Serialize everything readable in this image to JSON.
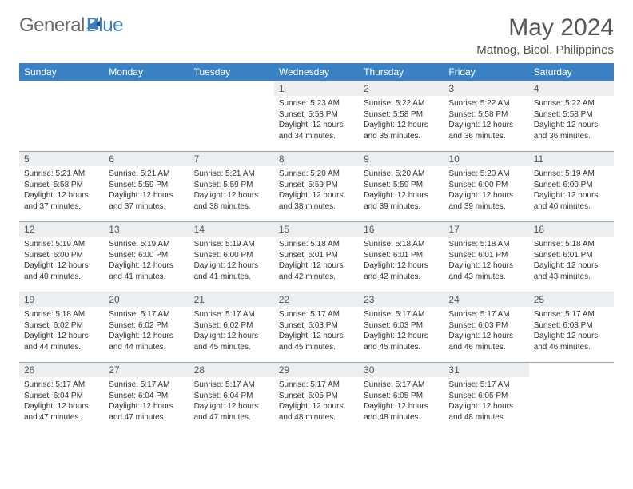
{
  "brand": {
    "part1": "General",
    "part2": "Blue"
  },
  "title": {
    "month": "May 2024",
    "location": "Matnog, Bicol, Philippines"
  },
  "colors": {
    "header_bg": "#3b82c4",
    "header_text": "#ffffff",
    "daynum_bg": "#eceff1",
    "border": "#9aa7b0",
    "brand_gray": "#666666",
    "brand_blue": "#3b82c4"
  },
  "weekdays": [
    "Sunday",
    "Monday",
    "Tuesday",
    "Wednesday",
    "Thursday",
    "Friday",
    "Saturday"
  ],
  "weeks": [
    [
      null,
      null,
      null,
      {
        "n": "1",
        "sr": "5:23 AM",
        "ss": "5:58 PM",
        "dl": "12 hours and 34 minutes."
      },
      {
        "n": "2",
        "sr": "5:22 AM",
        "ss": "5:58 PM",
        "dl": "12 hours and 35 minutes."
      },
      {
        "n": "3",
        "sr": "5:22 AM",
        "ss": "5:58 PM",
        "dl": "12 hours and 36 minutes."
      },
      {
        "n": "4",
        "sr": "5:22 AM",
        "ss": "5:58 PM",
        "dl": "12 hours and 36 minutes."
      }
    ],
    [
      {
        "n": "5",
        "sr": "5:21 AM",
        "ss": "5:58 PM",
        "dl": "12 hours and 37 minutes."
      },
      {
        "n": "6",
        "sr": "5:21 AM",
        "ss": "5:59 PM",
        "dl": "12 hours and 37 minutes."
      },
      {
        "n": "7",
        "sr": "5:21 AM",
        "ss": "5:59 PM",
        "dl": "12 hours and 38 minutes."
      },
      {
        "n": "8",
        "sr": "5:20 AM",
        "ss": "5:59 PM",
        "dl": "12 hours and 38 minutes."
      },
      {
        "n": "9",
        "sr": "5:20 AM",
        "ss": "5:59 PM",
        "dl": "12 hours and 39 minutes."
      },
      {
        "n": "10",
        "sr": "5:20 AM",
        "ss": "6:00 PM",
        "dl": "12 hours and 39 minutes."
      },
      {
        "n": "11",
        "sr": "5:19 AM",
        "ss": "6:00 PM",
        "dl": "12 hours and 40 minutes."
      }
    ],
    [
      {
        "n": "12",
        "sr": "5:19 AM",
        "ss": "6:00 PM",
        "dl": "12 hours and 40 minutes."
      },
      {
        "n": "13",
        "sr": "5:19 AM",
        "ss": "6:00 PM",
        "dl": "12 hours and 41 minutes."
      },
      {
        "n": "14",
        "sr": "5:19 AM",
        "ss": "6:00 PM",
        "dl": "12 hours and 41 minutes."
      },
      {
        "n": "15",
        "sr": "5:18 AM",
        "ss": "6:01 PM",
        "dl": "12 hours and 42 minutes."
      },
      {
        "n": "16",
        "sr": "5:18 AM",
        "ss": "6:01 PM",
        "dl": "12 hours and 42 minutes."
      },
      {
        "n": "17",
        "sr": "5:18 AM",
        "ss": "6:01 PM",
        "dl": "12 hours and 43 minutes."
      },
      {
        "n": "18",
        "sr": "5:18 AM",
        "ss": "6:01 PM",
        "dl": "12 hours and 43 minutes."
      }
    ],
    [
      {
        "n": "19",
        "sr": "5:18 AM",
        "ss": "6:02 PM",
        "dl": "12 hours and 44 minutes."
      },
      {
        "n": "20",
        "sr": "5:17 AM",
        "ss": "6:02 PM",
        "dl": "12 hours and 44 minutes."
      },
      {
        "n": "21",
        "sr": "5:17 AM",
        "ss": "6:02 PM",
        "dl": "12 hours and 45 minutes."
      },
      {
        "n": "22",
        "sr": "5:17 AM",
        "ss": "6:03 PM",
        "dl": "12 hours and 45 minutes."
      },
      {
        "n": "23",
        "sr": "5:17 AM",
        "ss": "6:03 PM",
        "dl": "12 hours and 45 minutes."
      },
      {
        "n": "24",
        "sr": "5:17 AM",
        "ss": "6:03 PM",
        "dl": "12 hours and 46 minutes."
      },
      {
        "n": "25",
        "sr": "5:17 AM",
        "ss": "6:03 PM",
        "dl": "12 hours and 46 minutes."
      }
    ],
    [
      {
        "n": "26",
        "sr": "5:17 AM",
        "ss": "6:04 PM",
        "dl": "12 hours and 47 minutes."
      },
      {
        "n": "27",
        "sr": "5:17 AM",
        "ss": "6:04 PM",
        "dl": "12 hours and 47 minutes."
      },
      {
        "n": "28",
        "sr": "5:17 AM",
        "ss": "6:04 PM",
        "dl": "12 hours and 47 minutes."
      },
      {
        "n": "29",
        "sr": "5:17 AM",
        "ss": "6:05 PM",
        "dl": "12 hours and 48 minutes."
      },
      {
        "n": "30",
        "sr": "5:17 AM",
        "ss": "6:05 PM",
        "dl": "12 hours and 48 minutes."
      },
      {
        "n": "31",
        "sr": "5:17 AM",
        "ss": "6:05 PM",
        "dl": "12 hours and 48 minutes."
      },
      null
    ]
  ],
  "labels": {
    "sunrise": "Sunrise:",
    "sunset": "Sunset:",
    "daylight": "Daylight:"
  }
}
